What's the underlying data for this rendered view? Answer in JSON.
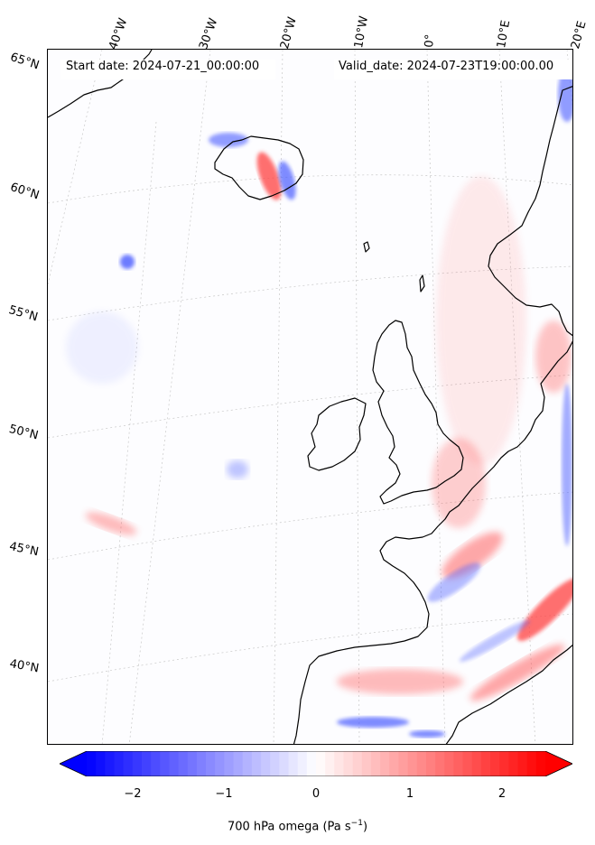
{
  "header": {
    "start_date": "Start date: 2024-07-21_00:00:00",
    "valid_date": "Valid_date: 2024-07-23T19:00:00.00"
  },
  "longitude_labels": [
    "40°W",
    "30°W",
    "20°W",
    "10°W",
    "0°",
    "10°E",
    "20°E"
  ],
  "latitude_labels": [
    "65°N",
    "60°N",
    "55°N",
    "50°N",
    "45°N",
    "40°N"
  ],
  "colorbar": {
    "ticks": [
      {
        "label": "−2",
        "value": -2
      },
      {
        "label": "−1",
        "value": -1
      },
      {
        "label": "0",
        "value": 0
      },
      {
        "label": "1",
        "value": 1
      },
      {
        "label": "2",
        "value": 2
      }
    ],
    "range": [
      -2.6,
      2.6
    ],
    "low_color": "#0000ff",
    "high_color": "#ff0000",
    "label_prefix": "700 hPa omega (Pa s",
    "label_exp": "−1",
    "label_suffix": ")"
  },
  "colors": {
    "coastline": "#000000",
    "gridline": "#c8c8c8",
    "rising": "#4a5cff",
    "sinking": "#ff4040"
  }
}
